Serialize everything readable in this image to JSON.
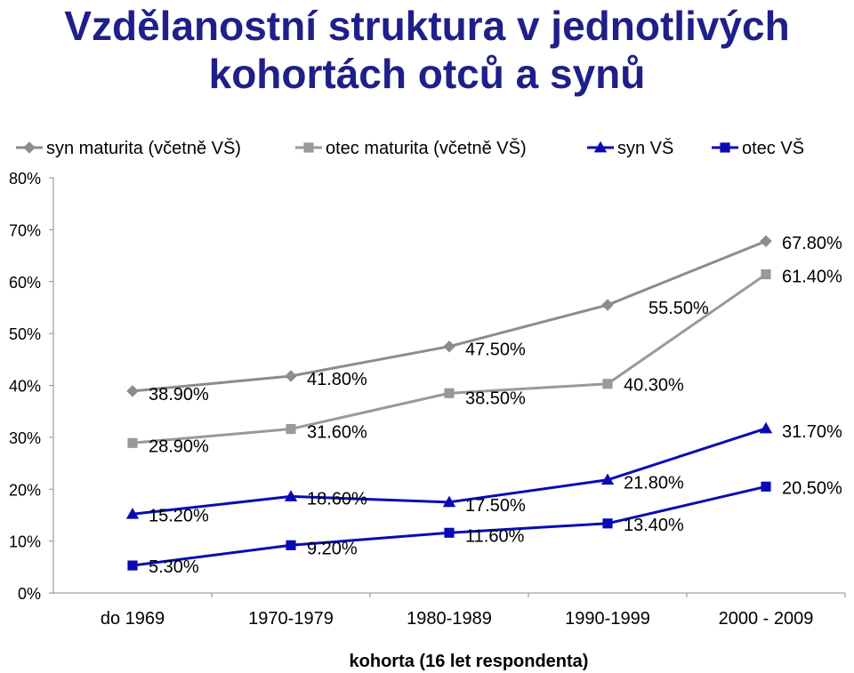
{
  "title": "Vzdělanostní struktura v jednotlivých kohortách otců a synů",
  "chart_data": {
    "type": "line",
    "title": "Vzdělanostní struktura v jednotlivých kohortách otců a synů",
    "xlabel": "kohorta (16 let respondenta)",
    "ylabel": "",
    "categories": [
      "do 1969",
      "1970-1979",
      "1980-1989",
      "1990-1999",
      "2000 - 2009"
    ],
    "ylim": [
      0,
      80
    ],
    "yticks": [
      "0%",
      "10%",
      "20%",
      "30%",
      "40%",
      "50%",
      "60%",
      "70%",
      "80%"
    ],
    "grid": false,
    "legend": "top",
    "series": [
      {
        "name": "syn maturita (včetně VŠ)",
        "values": [
          38.9,
          41.8,
          47.5,
          55.5,
          67.8
        ],
        "labels": [
          "38.90%",
          "41.80%",
          "47.50%",
          "55.50%",
          "67.80%"
        ],
        "color": "#8c8c8c",
        "marker": "diamond"
      },
      {
        "name": "otec maturita (včetně VŠ)",
        "values": [
          28.9,
          31.6,
          38.5,
          40.3,
          61.4
        ],
        "labels": [
          "28.90%",
          "31.60%",
          "38.50%",
          "40.30%",
          "61.40%"
        ],
        "color": "#999999",
        "marker": "square"
      },
      {
        "name": "syn VŠ",
        "values": [
          15.2,
          18.6,
          17.5,
          21.8,
          31.7
        ],
        "labels": [
          "15.20%",
          "18.60%",
          "17.50%",
          "21.80%",
          "31.70%"
        ],
        "color": "#0a0ab4",
        "marker": "triangle"
      },
      {
        "name": "otec VŠ",
        "values": [
          5.3,
          9.2,
          11.6,
          13.4,
          20.5
        ],
        "labels": [
          "5.30%",
          "9.20%",
          "11.60%",
          "13.40%",
          "20.50%"
        ],
        "color": "#0a0ab4",
        "marker": "square"
      }
    ]
  }
}
